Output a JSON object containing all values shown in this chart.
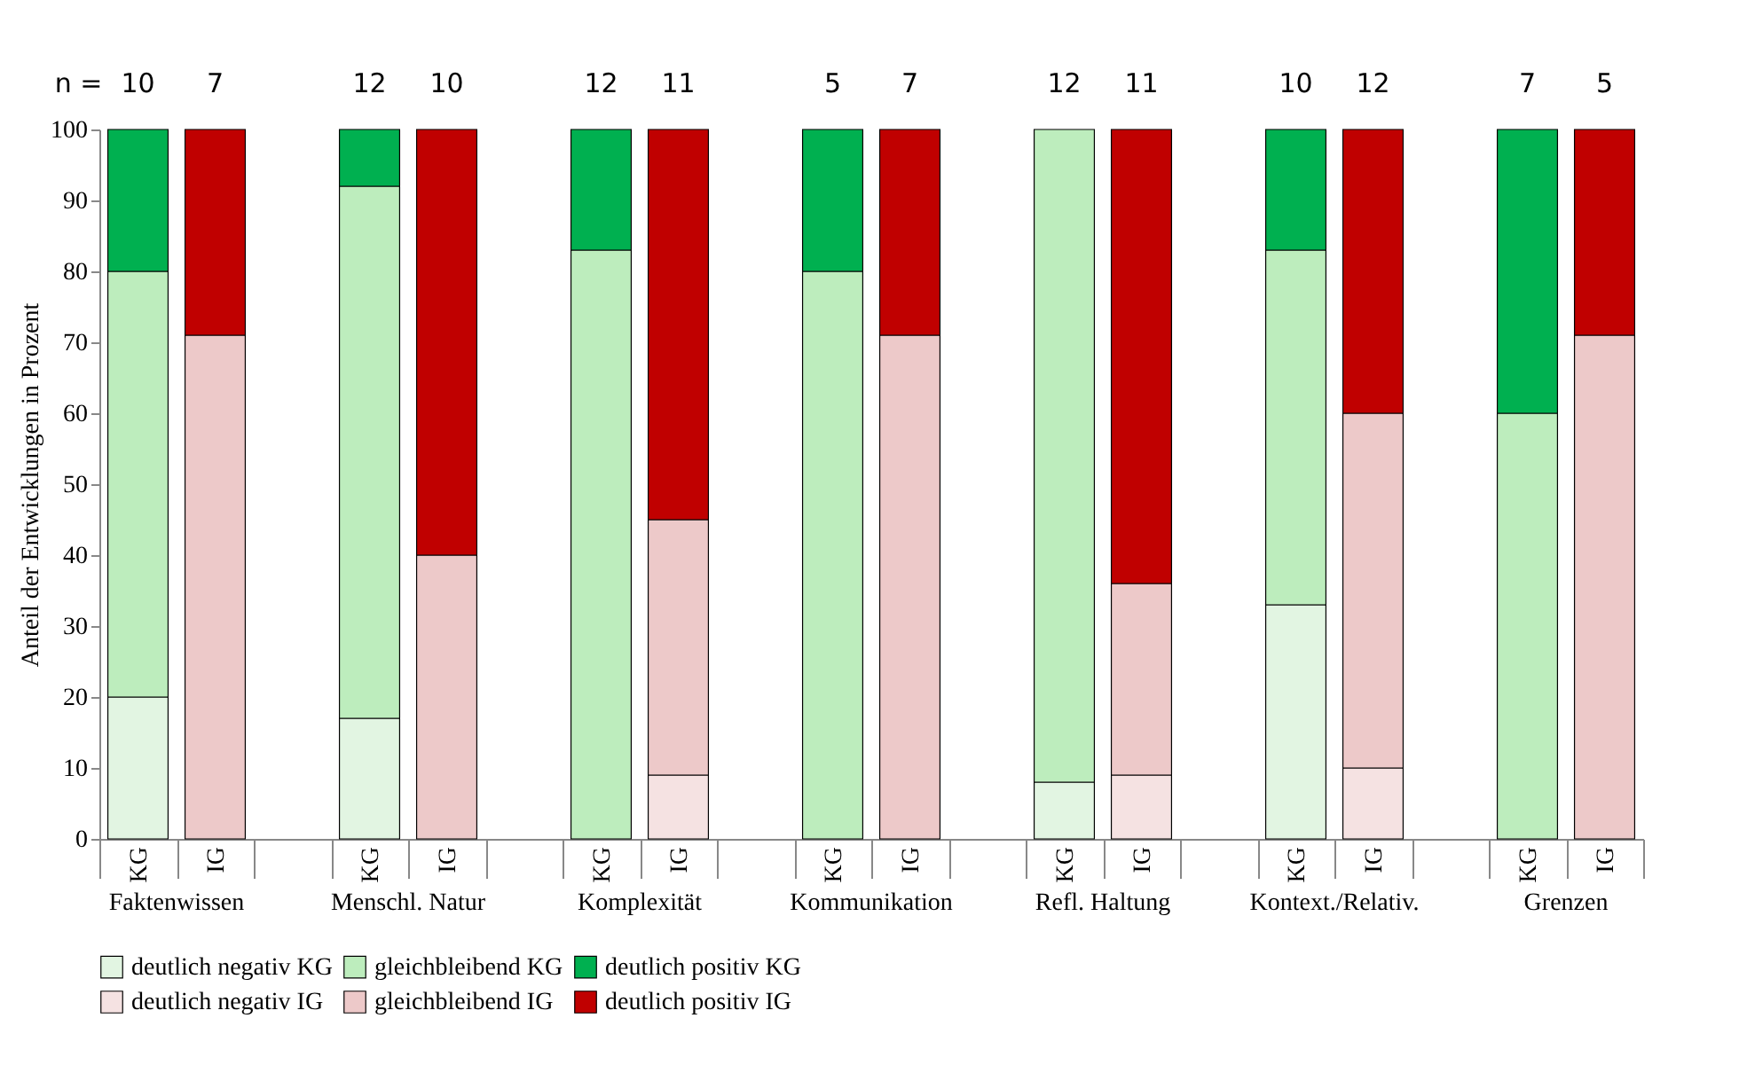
{
  "chart_data": {
    "type": "bar",
    "stacked": true,
    "ylabel": "Anteil der Entwicklungen in Prozent",
    "categories": [
      "KG",
      "IG",
      null,
      "KG",
      "IG",
      null,
      "KG",
      "IG",
      null,
      "KG",
      "IG",
      null,
      "KG",
      "IG",
      null,
      "KG",
      "IG",
      null,
      "KG",
      "IG"
    ],
    "series": [
      {
        "name": "deutlich negativ KG",
        "color": "#e2f5e2",
        "values": [
          20,
          null,
          null,
          17,
          null,
          null,
          null,
          null,
          null,
          null,
          null,
          null,
          8,
          null,
          null,
          33,
          null,
          null,
          null,
          null
        ]
      },
      {
        "name": "gleichbleibend KG",
        "color": "#bdedbd",
        "values": [
          60,
          null,
          null,
          75,
          null,
          null,
          83,
          null,
          null,
          80,
          null,
          null,
          92,
          null,
          null,
          50,
          null,
          null,
          60,
          null
        ]
      },
      {
        "name": "deutlich positiv KG",
        "color": "#00b050",
        "values": [
          20,
          null,
          null,
          8,
          null,
          null,
          17,
          null,
          null,
          20,
          null,
          null,
          null,
          null,
          null,
          17,
          null,
          null,
          40,
          null
        ]
      },
      {
        "name": "deutlich negativ IG",
        "color": "#f5e2e2",
        "values": [
          null,
          null,
          null,
          null,
          null,
          null,
          null,
          9,
          null,
          null,
          null,
          null,
          null,
          9,
          null,
          null,
          10,
          null,
          null,
          null
        ]
      },
      {
        "name": "gleichbleibend IG",
        "color": "#edc9c9",
        "values": [
          null,
          71,
          null,
          null,
          40,
          null,
          null,
          36,
          null,
          null,
          71,
          null,
          null,
          27,
          null,
          null,
          50,
          null,
          null,
          71
        ]
      },
      {
        "name": "deutlich positiv IG",
        "color": "#c00000",
        "values": [
          null,
          29,
          null,
          null,
          60,
          null,
          null,
          55,
          null,
          null,
          29,
          null,
          null,
          64,
          null,
          null,
          40,
          null,
          null,
          29
        ]
      }
    ],
    "ylim": [
      0,
      100
    ],
    "yticks": [
      0,
      10,
      20,
      30,
      40,
      50,
      60,
      70,
      80,
      90,
      100
    ],
    "legend": "bottom",
    "annotations": [
      "n =",
      "10",
      "7",
      "12",
      "10",
      "12",
      "11",
      "5",
      "7",
      "12",
      "11",
      "10",
      "12",
      "7",
      "5",
      "Faktenwissen",
      "Menschl. Natur",
      "Komplexität",
      "Kommunikation",
      "Refl. Haltung",
      "Kontext./Relativ.",
      "Grenzen"
    ]
  }
}
